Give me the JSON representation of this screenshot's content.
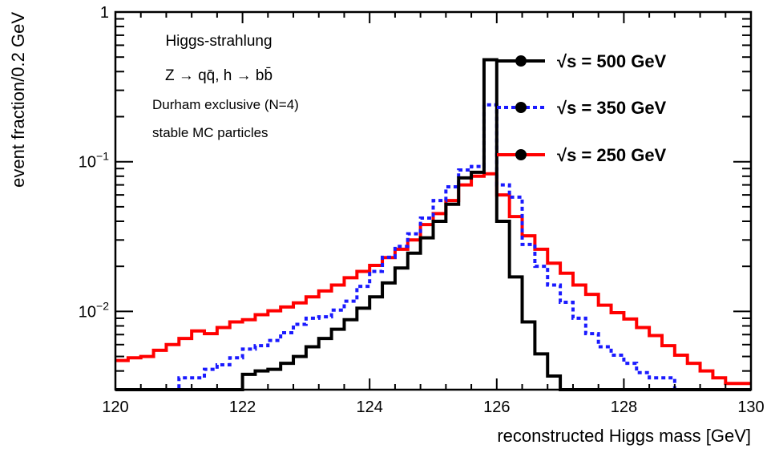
{
  "chart_data": {
    "type": "line",
    "step": true,
    "x_scale": "linear",
    "y_scale": "log",
    "xlim": [
      120,
      130
    ],
    "ylim": [
      0.003,
      1
    ],
    "xlabel": "reconstructed Higgs mass [GeV]",
    "ylabel": "event fraction/0.2 GeV",
    "x_ticks": [
      "120",
      "122",
      "124",
      "126",
      "128",
      "130"
    ],
    "y_ticks": [
      {
        "value": 1,
        "base": "1",
        "exp": ""
      },
      {
        "value": 0.1,
        "base": "10",
        "exp": "−1"
      },
      {
        "value": 0.01,
        "base": "10",
        "exp": "−2"
      }
    ],
    "bin_width": 0.2,
    "annotations": [
      "Higgs-strahlung",
      "Z → qq̄, h → bb̄",
      "Durham exclusive (N=4)",
      "stable MC particles"
    ],
    "legend_position": "top-right",
    "series": [
      {
        "name": "√s = 500 GeV",
        "color": "#000000",
        "dash": "solid",
        "bin_edges_start": 120,
        "values": [
          0.003,
          0.003,
          0.003,
          0.003,
          0.003,
          0.003,
          0.003,
          0.003,
          0.003,
          0.003,
          0.0038,
          0.004,
          0.0041,
          0.0045,
          0.005,
          0.0058,
          0.0066,
          0.0076,
          0.0088,
          0.0105,
          0.0125,
          0.0155,
          0.0195,
          0.0245,
          0.031,
          0.04,
          0.052,
          0.078,
          0.085,
          0.48,
          0.04,
          0.017,
          0.0085,
          0.0052,
          0.0037,
          0.003,
          0.003,
          0.003,
          0.003,
          0.003,
          0.003,
          0.003,
          0.003,
          0.003,
          0.003,
          0.003,
          0.003,
          0.003,
          0.003,
          0.003
        ]
      },
      {
        "name": "√s = 350 GeV",
        "color": "#1a1aff",
        "dash": "dotted",
        "bin_edges_start": 120,
        "values": [
          0.003,
          0.003,
          0.003,
          0.003,
          0.003,
          0.0036,
          0.0036,
          0.0041,
          0.0044,
          0.0049,
          0.0056,
          0.0059,
          0.0064,
          0.0072,
          0.0082,
          0.009,
          0.0092,
          0.0102,
          0.0117,
          0.0147,
          0.0185,
          0.023,
          0.0272,
          0.033,
          0.042,
          0.055,
          0.068,
          0.088,
          0.093,
          0.24,
          0.07,
          0.058,
          0.028,
          0.02,
          0.015,
          0.0115,
          0.009,
          0.0071,
          0.0058,
          0.0051,
          0.0045,
          0.0039,
          0.0036,
          0.0036,
          0.003,
          0.003,
          0.003,
          0.003,
          0.003,
          0.003
        ]
      },
      {
        "name": "√s = 250 GeV",
        "color": "#ff0000",
        "dash": "solid",
        "bin_edges_start": 120,
        "values": [
          0.0047,
          0.0049,
          0.005,
          0.0055,
          0.006,
          0.0066,
          0.0074,
          0.0071,
          0.0078,
          0.0085,
          0.0088,
          0.0095,
          0.0101,
          0.0107,
          0.0114,
          0.0125,
          0.0137,
          0.015,
          0.0168,
          0.0185,
          0.0203,
          0.0229,
          0.026,
          0.03,
          0.038,
          0.045,
          0.055,
          0.07,
          0.08,
          0.083,
          0.06,
          0.043,
          0.032,
          0.026,
          0.021,
          0.018,
          0.015,
          0.013,
          0.011,
          0.0098,
          0.0089,
          0.0078,
          0.0069,
          0.0059,
          0.0051,
          0.0045,
          0.004,
          0.0036,
          0.0033,
          0.0033
        ]
      }
    ]
  }
}
